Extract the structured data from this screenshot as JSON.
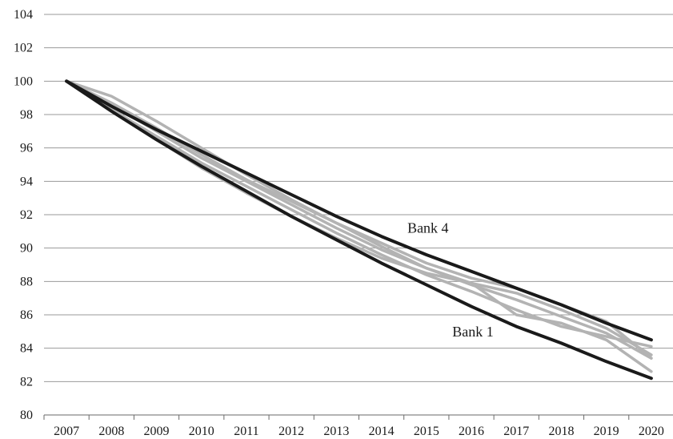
{
  "chart_data": {
    "type": "line",
    "title": "",
    "xlabel": "",
    "ylabel": "",
    "x": [
      "2007",
      "2008",
      "2009",
      "2010",
      "2011",
      "2012",
      "2013",
      "2014",
      "2015",
      "2016",
      "2017",
      "2018",
      "2019",
      "2020"
    ],
    "ylim": [
      80,
      104
    ],
    "yticks": [
      80,
      82,
      84,
      86,
      88,
      90,
      92,
      94,
      96,
      98,
      100,
      102,
      104
    ],
    "grid": true,
    "legend": "none",
    "colors": {
      "highlight": "#1a1a1a",
      "other": "#b3b3b3",
      "grid": "#9a9a9a"
    },
    "series": [
      {
        "name": "Bank 1",
        "highlight": true,
        "values": [
          100,
          98.2,
          96.5,
          94.9,
          93.4,
          91.9,
          90.5,
          89.1,
          87.8,
          86.5,
          85.3,
          84.3,
          83.2,
          82.2
        ]
      },
      {
        "name": "Bank 4",
        "highlight": true,
        "values": [
          100,
          98.5,
          97.1,
          95.8,
          94.5,
          93.2,
          91.9,
          90.7,
          89.6,
          88.6,
          87.6,
          86.6,
          85.5,
          84.5
        ]
      },
      {
        "name": "",
        "highlight": false,
        "values": [
          100,
          99.1,
          97.6,
          96.0,
          94.4,
          92.9,
          91.5,
          90.1,
          88.8,
          87.8,
          86.9,
          85.9,
          84.9,
          83.4
        ]
      },
      {
        "name": "",
        "highlight": false,
        "values": [
          100,
          98.4,
          96.5,
          94.8,
          93.3,
          91.9,
          90.6,
          89.4,
          88.5,
          87.9,
          86.0,
          85.5,
          84.5,
          82.6
        ]
      },
      {
        "name": "",
        "highlight": false,
        "values": [
          100,
          98.6,
          97.0,
          95.4,
          94.0,
          92.6,
          91.2,
          89.9,
          88.8,
          87.9,
          87.3,
          86.3,
          85.2,
          83.6
        ]
      },
      {
        "name": "",
        "highlight": false,
        "values": [
          100,
          98.7,
          97.2,
          95.6,
          94.1,
          92.8,
          91.5,
          90.3,
          89.1,
          88.2,
          87.6,
          86.6,
          85.6,
          83.4
        ]
      },
      {
        "name": "",
        "highlight": false,
        "values": [
          100,
          98.3,
          96.7,
          95.1,
          93.7,
          92.3,
          90.9,
          89.6,
          88.4,
          87.4,
          86.3,
          85.3,
          84.7,
          84.1
        ]
      }
    ],
    "annotations": [
      {
        "text": "Bank 4",
        "x": "2015",
        "y": 91.2
      },
      {
        "text": "Bank 1",
        "x": "2016",
        "y": 85.0
      }
    ]
  }
}
